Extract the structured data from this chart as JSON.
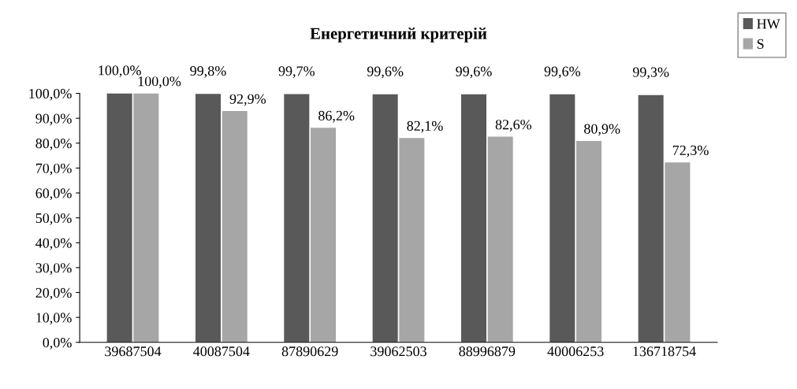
{
  "chart_data": {
    "type": "bar",
    "title": "Енергетичний критерій",
    "categories": [
      "39687504",
      "40087504",
      "87890629",
      "39062503",
      "88996879",
      "40006253",
      "136718754"
    ],
    "series": [
      {
        "name": "HW",
        "color": "#595959",
        "values": [
          100.0,
          99.8,
          99.7,
          99.6,
          99.6,
          99.6,
          99.3
        ],
        "value_labels": [
          "100,0%",
          "99,8%",
          "99,7%",
          "99,6%",
          "99,6%",
          "99,6%",
          "99,3%"
        ]
      },
      {
        "name": "S",
        "color": "#a6a6a6",
        "values": [
          100.0,
          92.9,
          86.2,
          82.1,
          82.6,
          80.9,
          72.3
        ],
        "value_labels": [
          "100,0%",
          "92,9%",
          "86,2%",
          "82,1%",
          "82,6%",
          "80,9%",
          "72,3%"
        ]
      }
    ],
    "ylim": [
      0,
      100
    ],
    "yticks": [
      {
        "value": 0,
        "label": "0,0%"
      },
      {
        "value": 10,
        "label": "10,0%"
      },
      {
        "value": 20,
        "label": "20,0%"
      },
      {
        "value": 30,
        "label": "30,0%"
      },
      {
        "value": 40,
        "label": "40,0%"
      },
      {
        "value": 50,
        "label": "50,0%"
      },
      {
        "value": 60,
        "label": "60,0%"
      },
      {
        "value": 70,
        "label": "70,0%"
      },
      {
        "value": 80,
        "label": "80,0%"
      },
      {
        "value": 90,
        "label": "90,0%"
      },
      {
        "value": 100,
        "label": "100,0%"
      }
    ],
    "grid": false,
    "legend": "top right"
  }
}
